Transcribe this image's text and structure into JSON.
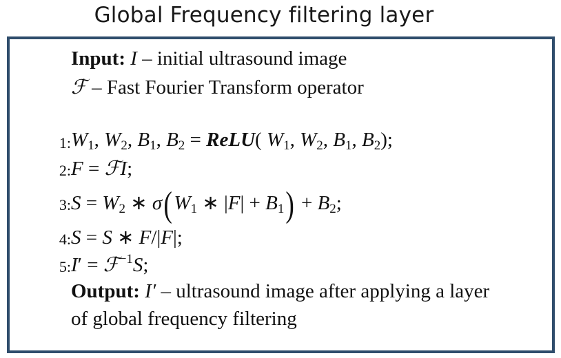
{
  "title": "Global Frequency filtering layer",
  "input": {
    "label": "Input:",
    "symbol": "I",
    "text": "– initial ultrasound image"
  },
  "operator": {
    "symbol": "ℱ",
    "text": "– Fast Fourier Transform operator"
  },
  "steps": [
    {
      "num": "1:"
    },
    {
      "num": "2:"
    },
    {
      "num": "3:"
    },
    {
      "num": "4:"
    },
    {
      "num": "5:"
    }
  ],
  "step1_fn": "ReLU",
  "output": {
    "label": "Output:",
    "symbol": "I′",
    "text": "– ultrasound image after applying a layer",
    "text2": "of global frequency filtering"
  }
}
